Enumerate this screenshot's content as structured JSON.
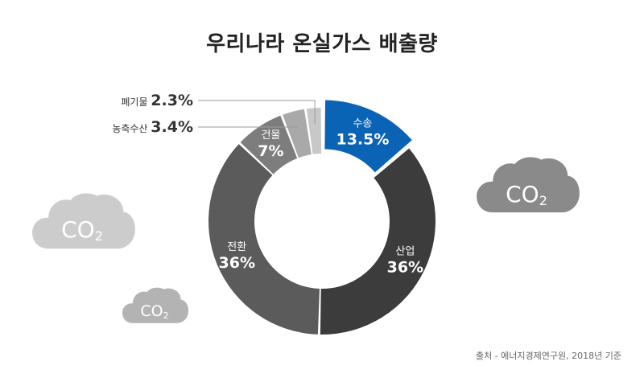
{
  "title": "우리나라 온실가스 배출량",
  "source": "출처 - 에너지경제연구원, 2018년 기준",
  "cloud_label": "CO",
  "cloud_subscript": "2",
  "chart_data": {
    "type": "pie",
    "variant": "donut",
    "title": "우리나라 온실가스 배출량",
    "unit": "%",
    "slices": [
      {
        "label": "수송",
        "value": 13.5,
        "value_label": "13.5%",
        "color": "#0a63b5",
        "label_placement": "inside"
      },
      {
        "label": "산업",
        "value": 36,
        "value_label": "36%",
        "color": "#3c3c3c",
        "label_placement": "inside"
      },
      {
        "label": "전환",
        "value": 36,
        "value_label": "36%",
        "color": "#5b5b5b",
        "label_placement": "inside"
      },
      {
        "label": "건물",
        "value": 7,
        "value_label": "7%",
        "color": "#7d7d7d",
        "label_placement": "inside"
      },
      {
        "label": "농축수산",
        "value": 3.4,
        "value_label": "3.4%",
        "color": "#a9a9a9",
        "label_placement": "callout"
      },
      {
        "label": "폐기물",
        "value": 2.3,
        "value_label": "2.3%",
        "color": "#c8c8c8",
        "label_placement": "callout"
      }
    ]
  }
}
